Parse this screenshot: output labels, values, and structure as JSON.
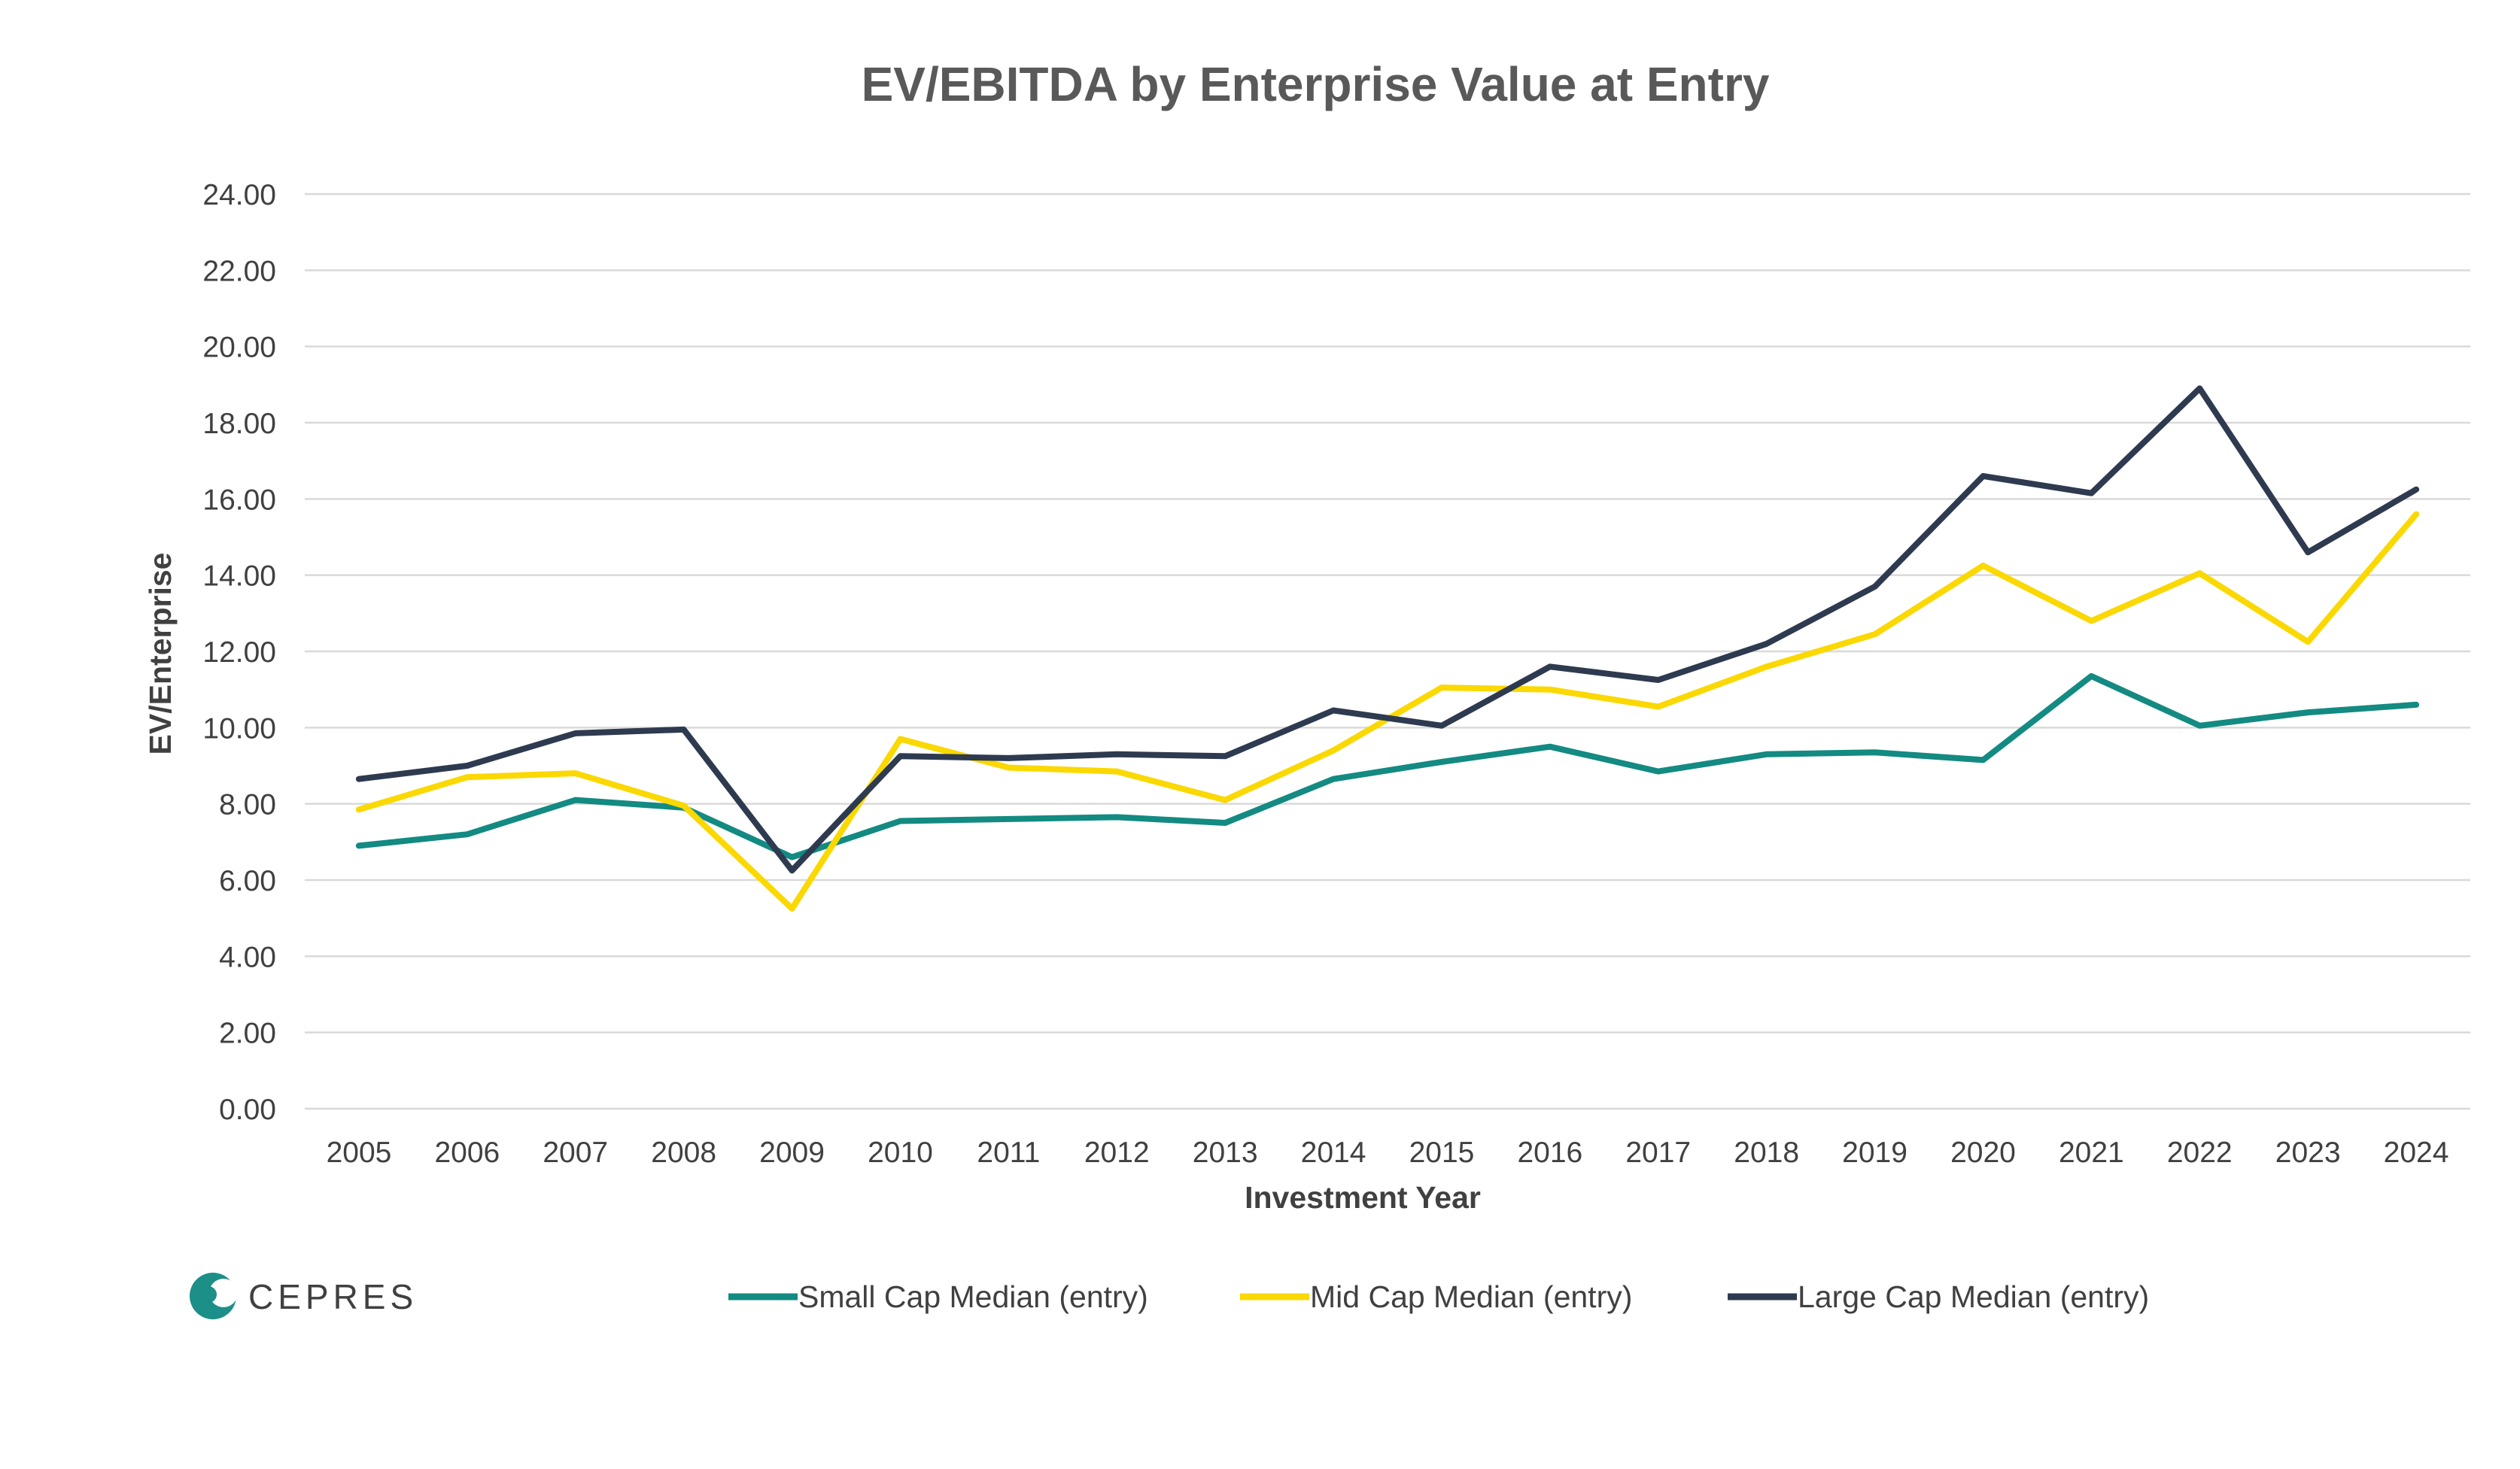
{
  "chart_data": {
    "type": "line",
    "title": "EV/EBITDA by Enterprise Value at Entry",
    "xlabel": "Investment Year",
    "ylabel": "EV/Enterprise",
    "ylim": [
      0,
      24
    ],
    "y_ticks": [
      "0.00",
      "2.00",
      "4.00",
      "6.00",
      "8.00",
      "10.00",
      "12.00",
      "14.00",
      "16.00",
      "18.00",
      "20.00",
      "22.00",
      "24.00"
    ],
    "grid": true,
    "legend_position": "bottom",
    "categories": [
      "2005",
      "2006",
      "2007",
      "2008",
      "2009",
      "2010",
      "2011",
      "2012",
      "2013",
      "2014",
      "2015",
      "2016",
      "2017",
      "2018",
      "2019",
      "2020",
      "2021",
      "2022",
      "2023",
      "2024"
    ],
    "series": [
      {
        "name": "Small Cap Median (entry)",
        "color": "#138a82",
        "values": [
          6.9,
          7.2,
          8.1,
          7.9,
          6.6,
          7.55,
          7.6,
          7.65,
          7.5,
          8.65,
          9.1,
          9.5,
          8.85,
          9.3,
          9.35,
          9.15,
          11.35,
          10.05,
          10.4,
          10.6
        ]
      },
      {
        "name": "Mid Cap Median (entry)",
        "color": "#fad800",
        "values": [
          7.85,
          8.7,
          8.8,
          7.95,
          5.25,
          9.7,
          8.95,
          8.85,
          8.1,
          9.4,
          11.05,
          11.0,
          10.55,
          11.6,
          12.45,
          14.25,
          12.8,
          14.05,
          12.25,
          15.6
        ]
      },
      {
        "name": "Large Cap Median (entry)",
        "color": "#2e3a4f",
        "values": [
          8.65,
          9.0,
          9.85,
          9.95,
          6.25,
          9.25,
          9.2,
          9.3,
          9.25,
          10.45,
          10.05,
          11.6,
          11.25,
          12.2,
          13.7,
          16.6,
          16.15,
          18.9,
          14.6,
          16.25
        ]
      }
    ]
  },
  "logo": {
    "text": "CEPRES",
    "color": "#1b8f88"
  }
}
